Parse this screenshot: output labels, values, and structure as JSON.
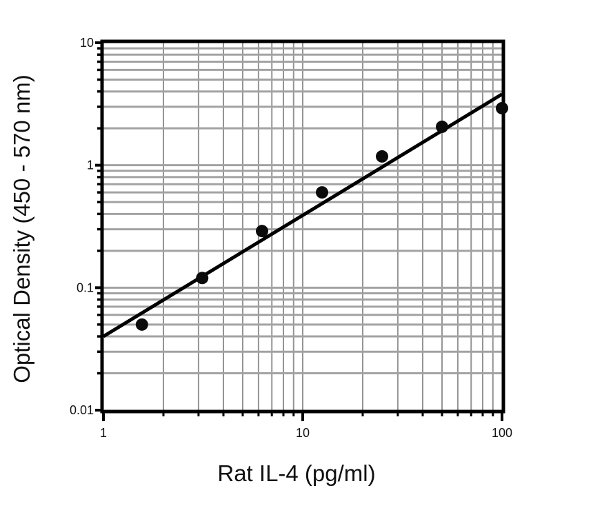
{
  "chart_data": {
    "type": "scatter",
    "title": "",
    "xlabel": "Rat IL-4 (pg/ml)",
    "ylabel": "Optical Density (450 - 570 nm)",
    "x_scale": "log",
    "y_scale": "log",
    "xlim": [
      1,
      100
    ],
    "ylim": [
      0.01,
      10
    ],
    "grid": {
      "show": true,
      "minor": true,
      "major": true
    },
    "legend": null,
    "series": [
      {
        "name": "standard-curve-points",
        "marker": "filled-circle",
        "x": [
          1.56,
          3.13,
          6.25,
          12.5,
          25,
          50,
          100
        ],
        "y": [
          0.05,
          0.12,
          0.29,
          0.6,
          1.18,
          2.06,
          2.92
        ]
      }
    ],
    "trend_line": {
      "x1": 1,
      "y1": 0.04,
      "x2": 100,
      "y2": 3.8
    },
    "x_ticks": {
      "major": [
        {
          "v": 1,
          "label": "1"
        },
        {
          "v": 10,
          "label": "10"
        },
        {
          "v": 100,
          "label": "100"
        }
      ],
      "minor": [
        2,
        3,
        4,
        5,
        6,
        7,
        8,
        9,
        20,
        30,
        40,
        50,
        60,
        70,
        80,
        90
      ]
    },
    "y_ticks": {
      "major": [
        {
          "v": 0.01,
          "label": "0.01"
        },
        {
          "v": 0.1,
          "label": "0.1"
        },
        {
          "v": 1,
          "label": "1"
        },
        {
          "v": 10,
          "label": "10"
        }
      ],
      "minor": [
        0.02,
        0.03,
        0.04,
        0.05,
        0.06,
        0.07,
        0.08,
        0.09,
        0.2,
        0.3,
        0.4,
        0.5,
        0.6,
        0.7,
        0.8,
        0.9,
        2,
        3,
        4,
        5,
        6,
        7,
        8,
        9
      ]
    },
    "colors": {
      "h_grid": "#a2a2a2",
      "v_grid": "#949494",
      "axis_frame": "#000000",
      "marker": "#0b0b0b",
      "trend_line": "#000000",
      "background": "#ffffff"
    }
  }
}
